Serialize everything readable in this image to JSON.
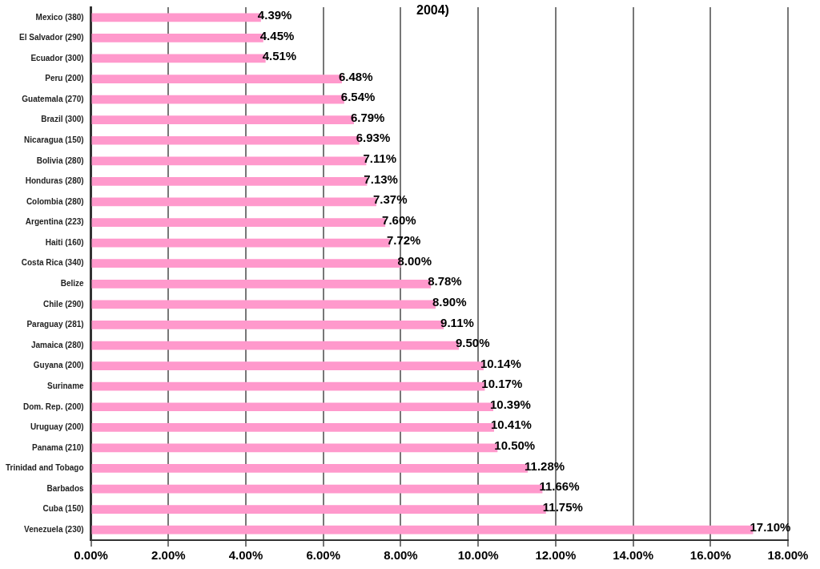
{
  "chart_data": {
    "type": "bar",
    "orientation": "horizontal",
    "annotations": [
      "2004)"
    ],
    "categories": [
      "Mexico (380)",
      "El Salvador (290)",
      "Ecuador (300)",
      "Peru (200)",
      "Guatemala (270)",
      "Brazil (300)",
      "Nicaragua (150)",
      "Bolivia (280)",
      "Honduras (280)",
      "Colombia (280)",
      "Argentina (223)",
      "Haiti (160)",
      "Costa Rica (340)",
      "Belize",
      "Chile (290)",
      "Paraguay (281)",
      "Jamaica (280)",
      "Guyana (200)",
      "Suriname",
      "Dom. Rep. (200)",
      "Uruguay (200)",
      "Panama (210)",
      "Trinidad and Tobago",
      "Barbados",
      "Cuba (150)",
      "Venezuela (230)"
    ],
    "values": [
      4.39,
      4.45,
      4.51,
      6.48,
      6.54,
      6.79,
      6.93,
      7.11,
      7.13,
      7.37,
      7.6,
      7.72,
      8.0,
      8.78,
      8.9,
      9.11,
      9.5,
      10.14,
      10.17,
      10.39,
      10.41,
      10.5,
      11.28,
      11.66,
      11.75,
      17.1
    ],
    "value_labels": [
      "4.39%",
      "4.45%",
      "4.51%",
      "6.48%",
      "6.54%",
      "6.79%",
      "6.93%",
      "7.11%",
      "7.13%",
      "7.37%",
      "7.60%",
      "7.72%",
      "8.00%",
      "8.78%",
      "8.90%",
      "9.11%",
      "9.50%",
      "10.14%",
      "10.17%",
      "10.39%",
      "10.41%",
      "10.50%",
      "11.28%",
      "11.66%",
      "11.75%",
      "17.10%"
    ],
    "color": "#ff99cc",
    "xlim": [
      0,
      18
    ],
    "xticks": [
      {
        "value": 0,
        "label": "0.00%"
      },
      {
        "value": 2,
        "label": "2.00%"
      },
      {
        "value": 4,
        "label": "4.00%"
      },
      {
        "value": 6,
        "label": "6.00%"
      },
      {
        "value": 8,
        "label": "8.00%"
      },
      {
        "value": 10,
        "label": "10.00%"
      },
      {
        "value": 12,
        "label": "12.00%"
      },
      {
        "value": 14,
        "label": "14.00%"
      },
      {
        "value": 16,
        "label": "16.00%"
      },
      {
        "value": 18,
        "label": "18.00%"
      }
    ],
    "grid": "x",
    "legend": false
  }
}
